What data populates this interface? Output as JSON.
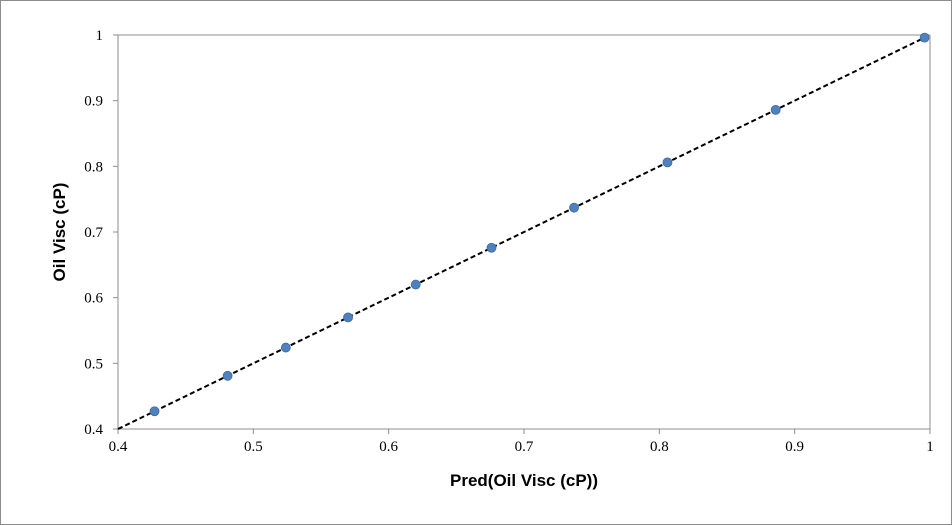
{
  "chart_data": {
    "type": "scatter",
    "title": "",
    "xlabel": "Pred(Oil Visc (cP))",
    "ylabel": "Oil Visc (cP)",
    "xlim": [
      0.4,
      1.0
    ],
    "ylim": [
      0.4,
      1.0
    ],
    "x_ticks": [
      "0.4",
      "0.5",
      "0.6",
      "0.7",
      "0.8",
      "0.9",
      "1"
    ],
    "y_ticks": [
      "0.4",
      "0.5",
      "0.6",
      "0.7",
      "0.8",
      "0.9",
      "1"
    ],
    "grid": false,
    "legend": "none",
    "series": [
      {
        "marker_color": "#4f81bd",
        "points": [
          {
            "x": 0.427,
            "y": 0.427
          },
          {
            "x": 0.481,
            "y": 0.481
          },
          {
            "x": 0.524,
            "y": 0.524
          },
          {
            "x": 0.57,
            "y": 0.57
          },
          {
            "x": 0.62,
            "y": 0.62
          },
          {
            "x": 0.676,
            "y": 0.676
          },
          {
            "x": 0.737,
            "y": 0.737
          },
          {
            "x": 0.806,
            "y": 0.806
          },
          {
            "x": 0.886,
            "y": 0.886
          },
          {
            "x": 0.996,
            "y": 0.996
          }
        ]
      }
    ],
    "reference_line": {
      "style": "dashed",
      "color": "#000000",
      "from": {
        "x": 0.4,
        "y": 0.4
      },
      "to": {
        "x": 1.0,
        "y": 1.0
      }
    }
  }
}
